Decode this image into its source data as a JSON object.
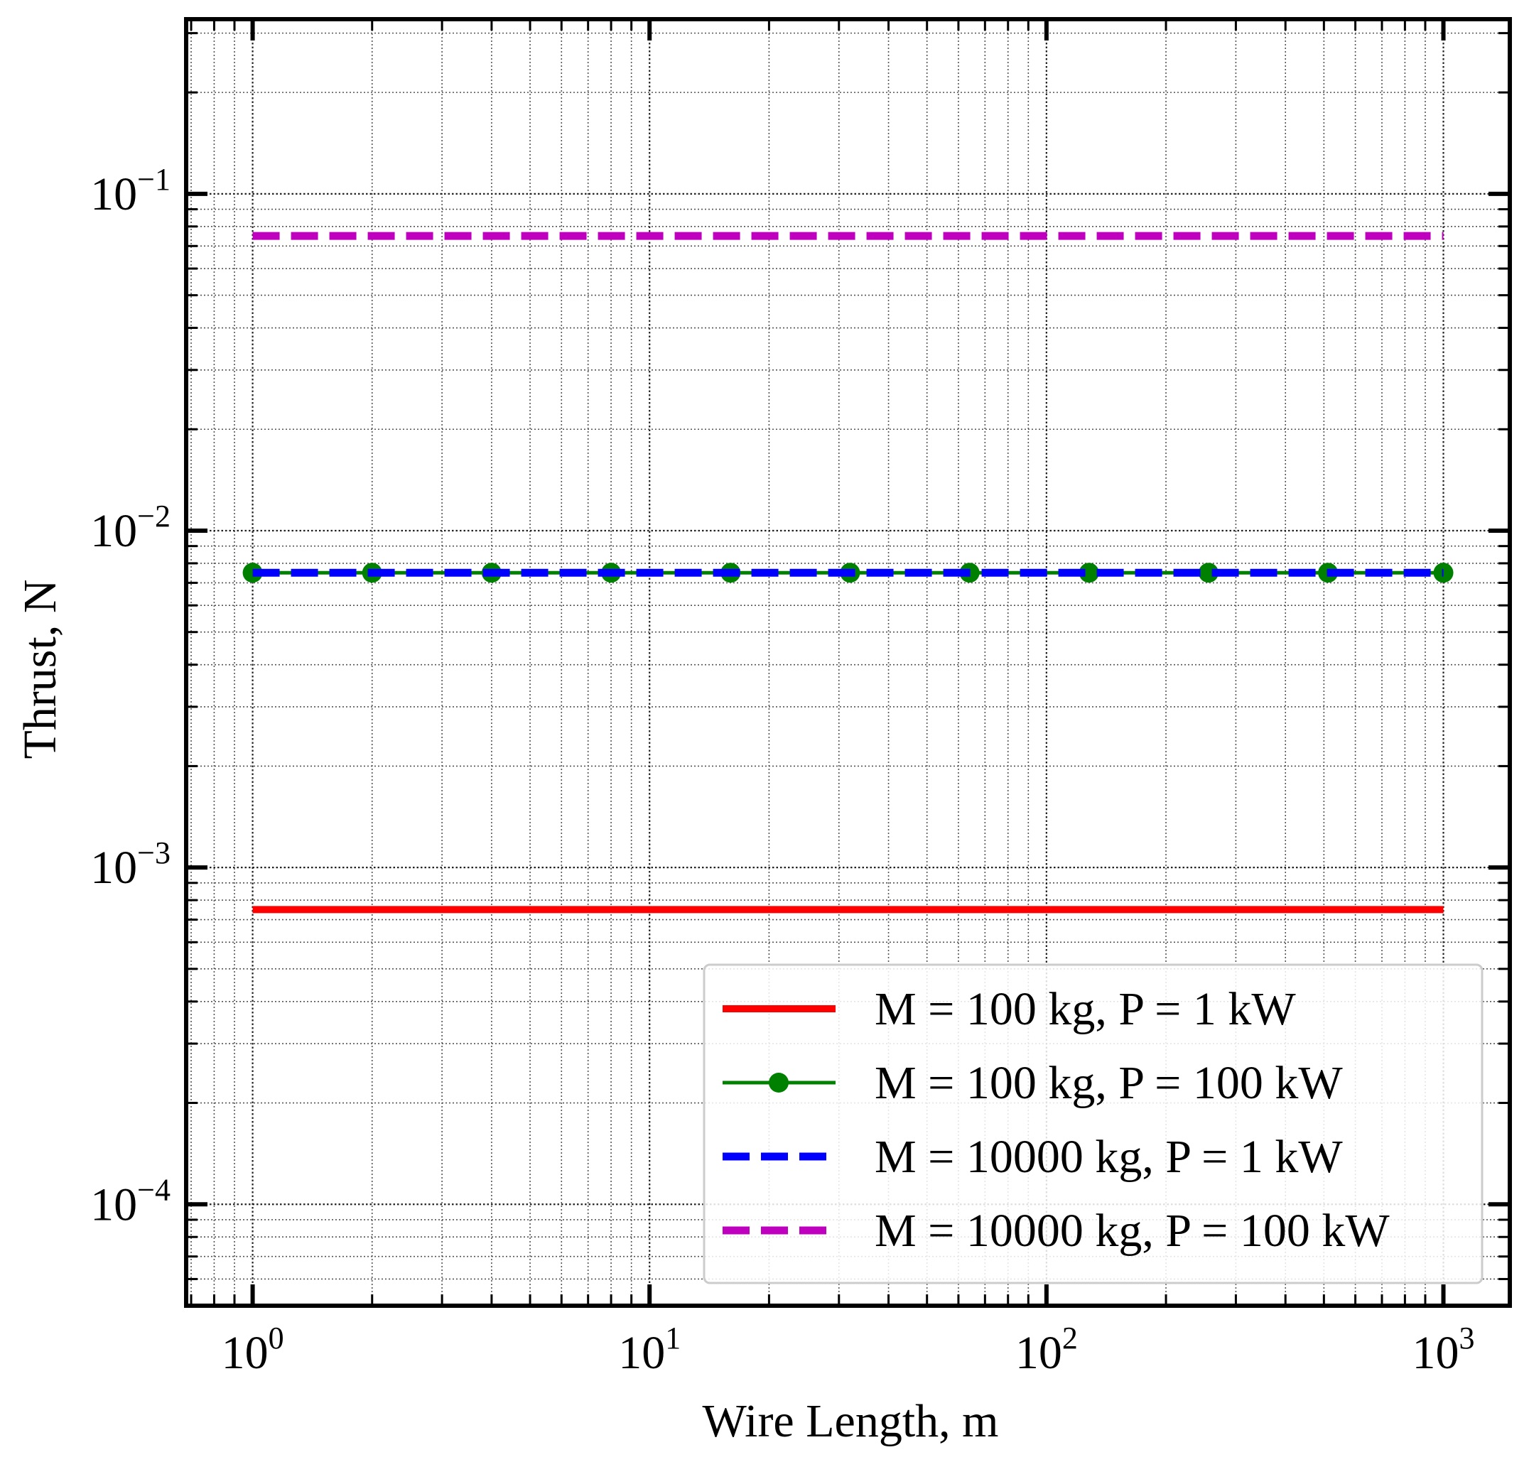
{
  "chart_data": {
    "type": "line",
    "xlabel": "Wire Length, m",
    "ylabel": "Thrust, N",
    "xscale": "log",
    "yscale": "log",
    "xlim": [
      0.68,
      1470
    ],
    "ylim": [
      5e-05,
      0.33
    ],
    "grid": true,
    "legend_position": "lower-right",
    "x_tick_labels": [
      {
        "value": 1,
        "base": "10",
        "exp": "0"
      },
      {
        "value": 10,
        "base": "10",
        "exp": "1"
      },
      {
        "value": 100,
        "base": "10",
        "exp": "2"
      },
      {
        "value": 1000,
        "base": "10",
        "exp": "3"
      }
    ],
    "y_tick_labels": [
      {
        "value": 0.0001,
        "base": "10",
        "exp": "−4"
      },
      {
        "value": 0.001,
        "base": "10",
        "exp": "−3"
      },
      {
        "value": 0.01,
        "base": "10",
        "exp": "−2"
      },
      {
        "value": 0.1,
        "base": "10",
        "exp": "−1"
      }
    ],
    "series": [
      {
        "name": "M = 100 kg, P = 1 kW",
        "color": "#ff0000",
        "style": "solid",
        "marker": "none",
        "x": [
          1,
          1000
        ],
        "y": [
          0.00075,
          0.00075
        ]
      },
      {
        "name": "M = 100 kg, P = 100 kW",
        "color": "#008000",
        "style": "solid",
        "marker": "circle",
        "x": [
          1,
          2,
          4,
          8,
          16,
          32,
          64,
          128,
          256,
          512,
          1000
        ],
        "y": [
          0.0075,
          0.0075,
          0.0075,
          0.0075,
          0.0075,
          0.0075,
          0.0075,
          0.0075,
          0.0075,
          0.0075,
          0.0075
        ]
      },
      {
        "name": "M = 10000 kg, P = 1 kW",
        "color": "#0000ff",
        "style": "dashed",
        "marker": "none",
        "x": [
          1,
          1000
        ],
        "y": [
          0.0075,
          0.0075
        ]
      },
      {
        "name": "M = 10000 kg, P = 100 kW",
        "color": "#bf00bf",
        "style": "dashed",
        "marker": "none",
        "x": [
          1,
          1000
        ],
        "y": [
          0.075,
          0.075
        ]
      }
    ]
  }
}
